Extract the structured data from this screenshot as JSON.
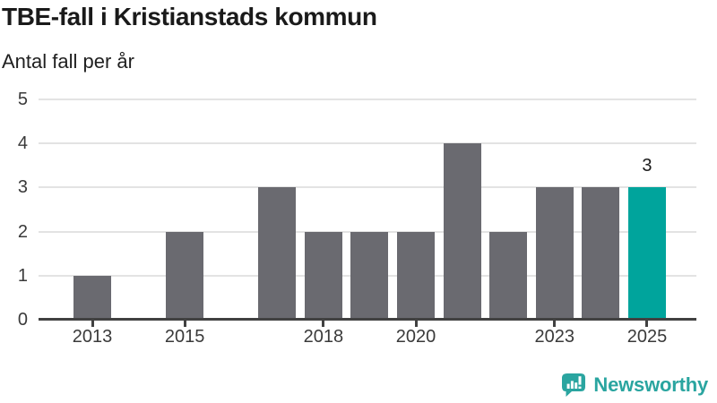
{
  "header": {
    "title": "TBE-fall i Kristianstads kommun",
    "subtitle": "Antal fall per år"
  },
  "chart_data": {
    "type": "bar",
    "title": "TBE-fall i Kristianstads kommun",
    "ylabel": "Antal fall per år",
    "x": [
      2013,
      2014,
      2015,
      2016,
      2017,
      2018,
      2019,
      2020,
      2021,
      2022,
      2023,
      2024,
      2025
    ],
    "values": [
      1,
      0,
      2,
      0,
      3,
      2,
      2,
      2,
      4,
      2,
      3,
      3,
      3
    ],
    "ylim": [
      0,
      5
    ],
    "y_ticks": [
      "0",
      "1",
      "2",
      "3",
      "4",
      "5"
    ],
    "x_tick_labels": [
      "2013",
      "2015",
      "2018",
      "2020",
      "2023",
      "2025"
    ],
    "highlight_year": 2025,
    "value_label": {
      "year": 2025,
      "text": "3"
    },
    "grid": "horizontal",
    "legend": "none",
    "colors": {
      "bar": "#6a6a70",
      "highlight": "#00a49c",
      "gridline": "#e3e3e3",
      "axis": "#414141",
      "tick_text": "#3a3a3a",
      "annotation_text": "#1a1a1a"
    }
  },
  "footer": {
    "brand": "Newsworthy",
    "brand_color": "#2aa5a0",
    "logo_icon": "bar-chart-speech-bubble-icon"
  }
}
